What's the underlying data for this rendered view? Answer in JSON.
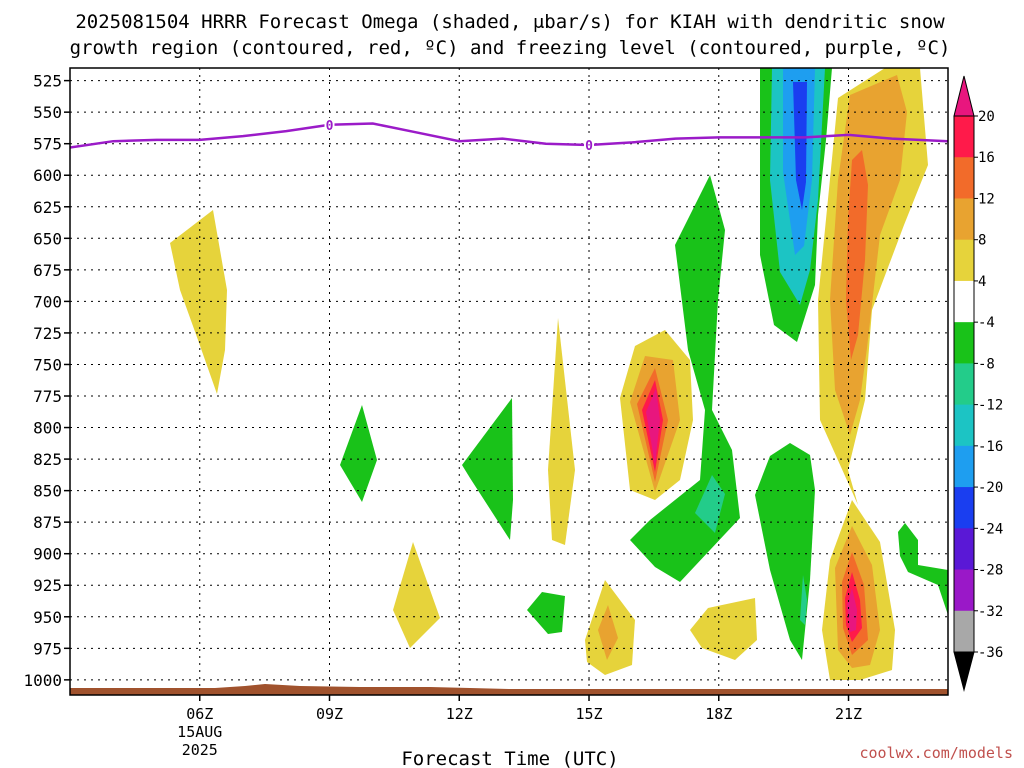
{
  "chart_data": {
    "type": "heatmap",
    "title_line1": "2025081504 HRRR Forecast Omega (shaded, μbar/s) for KIAH with dendritic snow",
    "title_line2": "growth region (contoured, red, ºC) and freezing level (contoured, purple, ºC)",
    "xlabel": "Forecast Time (UTC)",
    "credit": "coolwx.com/models",
    "x_range_hours": [
      3,
      23.3
    ],
    "y_range_mb": [
      515,
      1012
    ],
    "y_ticks": [
      "525",
      "550",
      "575",
      "600",
      "625",
      "650",
      "675",
      "700",
      "725",
      "750",
      "775",
      "800",
      "825",
      "850",
      "875",
      "900",
      "925",
      "950",
      "975",
      "1000"
    ],
    "y_tick_values": [
      525,
      550,
      575,
      600,
      625,
      650,
      675,
      700,
      725,
      750,
      775,
      800,
      825,
      850,
      875,
      900,
      925,
      950,
      975,
      1000
    ],
    "x_ticks": [
      {
        "hour": 6,
        "label": "06Z",
        "date1": "15AUG",
        "date2": "2025"
      },
      {
        "hour": 9,
        "label": "09Z"
      },
      {
        "hour": 12,
        "label": "12Z"
      },
      {
        "hour": 15,
        "label": "15Z"
      },
      {
        "hour": 18,
        "label": "18Z"
      },
      {
        "hour": 21,
        "label": "21Z"
      }
    ],
    "grid": true,
    "colorbar": {
      "labels": [
        "20",
        "16",
        "12",
        "8",
        "4",
        "-4",
        "-8",
        "-12",
        "-16",
        "-20",
        "-24",
        "-28",
        "-32",
        "-36"
      ],
      "colors": [
        "#ff1a4a",
        "#f26b2a",
        "#e8a330",
        "#e6d33b",
        "#ffffff",
        "#19c219",
        "#23cc8a",
        "#1cc4c4",
        "#1e9ef0",
        "#1a3ef0",
        "#5a18d6",
        "#9a18c8",
        "#a8a8a8",
        "#000000"
      ],
      "top_color": "#e8167e"
    },
    "freezing_level": {
      "color": "#9b1bc8",
      "label": "0",
      "label_hours": [
        9,
        15
      ],
      "points": [
        [
          3,
          578
        ],
        [
          4,
          573
        ],
        [
          5,
          572
        ],
        [
          6,
          572
        ],
        [
          7,
          569
        ],
        [
          8,
          565
        ],
        [
          9,
          560
        ],
        [
          10,
          559
        ],
        [
          11,
          566
        ],
        [
          12,
          573
        ],
        [
          13,
          571
        ],
        [
          14,
          575
        ],
        [
          15,
          576
        ],
        [
          16,
          574
        ],
        [
          17,
          571
        ],
        [
          18,
          570
        ],
        [
          19,
          570
        ],
        [
          20,
          570
        ],
        [
          21,
          568
        ],
        [
          22,
          571
        ],
        [
          23.3,
          573
        ]
      ]
    },
    "terrain_color": "#a0522d"
  }
}
